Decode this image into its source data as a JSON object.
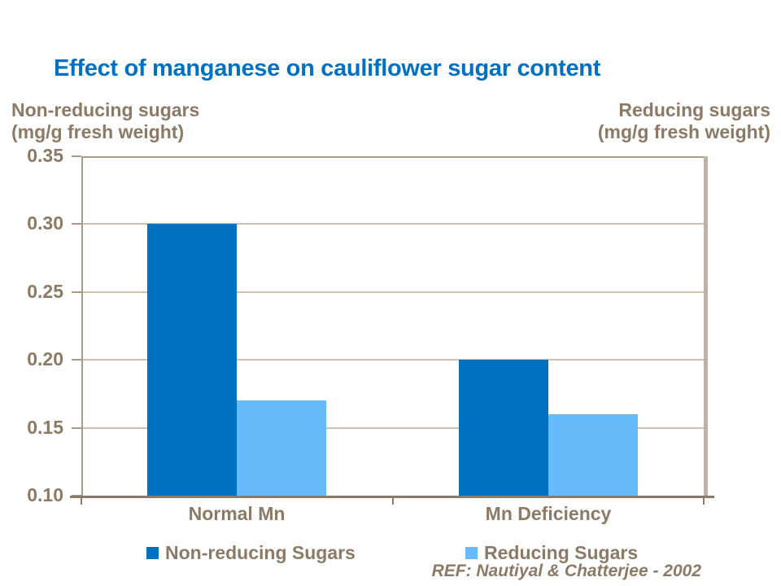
{
  "slide": {
    "title": "Effect of manganese on cauliflower sugar content",
    "reference": "REF: Nautiyal & Chatterjee - 2002"
  },
  "axis_labels": {
    "left_line1": "Non-reducing sugars",
    "left_line2": "(mg/g fresh weight)",
    "right_line1": "Reducing sugars",
    "right_line2": "(mg/g fresh weight)"
  },
  "colors": {
    "title_blue": "#0070C0",
    "label_brown": "#8B7A66",
    "axis_tan": "#A79A88",
    "grid_tan": "#CDC2B2",
    "wall_tan": "#BFB2A2",
    "baseline_brown": "#8B7A66",
    "series1_blue": "#0070C0",
    "series2_light_blue": "#66BBFA"
  },
  "chart_data": {
    "type": "bar",
    "title": "Effect of manganese on cauliflower sugar content",
    "categories": [
      "Normal Mn",
      "Mn Deficiency"
    ],
    "series": [
      {
        "name": "Non-reducing Sugars",
        "color": "#0070C0",
        "values": [
          0.3,
          0.2
        ]
      },
      {
        "name": "Reducing Sugars",
        "color": "#66BBFA",
        "values": [
          0.17,
          0.16
        ]
      }
    ],
    "ylabel_left": "Non-reducing sugars (mg/g fresh weight)",
    "ylabel_right": "Reducing sugars (mg/g fresh weight)",
    "ylim": [
      0.1,
      0.35
    ],
    "ytick_step": 0.05,
    "ytick_labels": [
      "0.35",
      "0.30",
      "0.25",
      "0.20",
      "0.15",
      "0.10"
    ],
    "grid": true,
    "legend_position": "bottom",
    "annotation": "REF: Nautiyal & Chatterjee - 2002"
  }
}
